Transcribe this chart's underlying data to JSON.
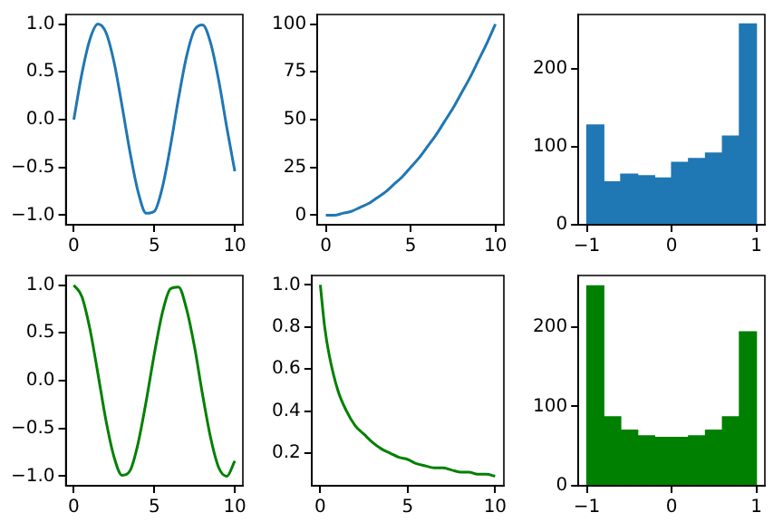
{
  "chart_data": [
    {
      "type": "line",
      "color": "#1f77b4",
      "x": [
        0,
        0.5,
        1,
        1.5,
        2,
        2.5,
        3,
        3.5,
        4,
        4.5,
        5,
        5.5,
        6,
        6.5,
        7,
        7.5,
        8,
        8.5,
        9,
        9.5,
        10
      ],
      "values": [
        0,
        0.48,
        0.84,
        1.0,
        0.91,
        0.6,
        0.14,
        -0.35,
        -0.76,
        -0.98,
        -0.96,
        -0.71,
        -0.28,
        0.22,
        0.66,
        0.94,
        0.99,
        0.8,
        0.41,
        -0.08,
        -0.54
      ],
      "xlim": [
        -0.5,
        10.5
      ],
      "xticks": [
        0,
        5,
        10
      ],
      "ylim": [
        -1.1,
        1.1
      ],
      "yticks": [
        {
          "value": -1,
          "label": "−1.0"
        },
        {
          "value": -0.5,
          "label": "−0.5"
        },
        {
          "value": 0,
          "label": "0.0"
        },
        {
          "value": 0.5,
          "label": "0.5"
        },
        {
          "value": 1,
          "label": "1.0"
        }
      ]
    },
    {
      "type": "line",
      "color": "#1f77b4",
      "x": [
        0,
        0.5,
        1,
        1.5,
        2,
        2.5,
        3,
        3.5,
        4,
        4.5,
        5,
        5.5,
        6,
        6.5,
        7,
        7.5,
        8,
        8.5,
        9,
        9.5,
        10
      ],
      "values": [
        0,
        0,
        1,
        2,
        4,
        6,
        9,
        12,
        16,
        20,
        25,
        30,
        36,
        42,
        49,
        56,
        64,
        72,
        81,
        90,
        100
      ],
      "xlim": [
        -0.5,
        10.5
      ],
      "xticks": [
        0,
        5,
        10
      ],
      "ylim": [
        -5,
        105
      ],
      "yticks": [
        0,
        25,
        50,
        75,
        100
      ]
    },
    {
      "type": "histogram",
      "color": "#1f77b4",
      "bins": [
        -1,
        -0.8,
        -0.6,
        -0.4,
        -0.2,
        0,
        0.2,
        0.4,
        0.6,
        0.8,
        1
      ],
      "values": [
        128,
        55,
        65,
        63,
        60,
        80,
        85,
        92,
        114,
        258
      ],
      "xlim": [
        -1.1,
        1.1
      ],
      "xticks": [
        {
          "value": -1,
          "label": "−1"
        },
        0,
        1
      ],
      "ylim": [
        0,
        270
      ],
      "yticks": [
        0,
        100,
        200
      ]
    },
    {
      "type": "line",
      "color": "#008000",
      "x": [
        0,
        0.5,
        1,
        1.5,
        2,
        2.5,
        3,
        3.5,
        4,
        4.5,
        5,
        5.5,
        6,
        6.5,
        7,
        7.5,
        8,
        8.5,
        9,
        9.5,
        10
      ],
      "values": [
        1,
        0.88,
        0.54,
        0.07,
        -0.42,
        -0.8,
        -0.99,
        -0.94,
        -0.65,
        -0.21,
        0.28,
        0.71,
        0.96,
        0.98,
        0.75,
        0.35,
        -0.15,
        -0.6,
        -0.91,
        -1.0,
        -0.84
      ],
      "xlim": [
        -0.5,
        10.5
      ],
      "xticks": [
        0,
        5,
        10
      ],
      "ylim": [
        -1.1,
        1.1
      ],
      "yticks": [
        {
          "value": -1,
          "label": "−1.0"
        },
        {
          "value": -0.5,
          "label": "−0.5"
        },
        {
          "value": 0,
          "label": "0.0"
        },
        {
          "value": 0.5,
          "label": "0.5"
        },
        {
          "value": 1,
          "label": "1.0"
        }
      ]
    },
    {
      "type": "line",
      "color": "#008000",
      "x": [
        0,
        0.25,
        0.5,
        1,
        1.5,
        2,
        2.5,
        3,
        3.5,
        4,
        4.5,
        5,
        5.5,
        6,
        6.5,
        7,
        7.5,
        8,
        8.5,
        9,
        9.5,
        10
      ],
      "values": [
        1,
        0.8,
        0.67,
        0.5,
        0.4,
        0.33,
        0.29,
        0.25,
        0.22,
        0.2,
        0.18,
        0.17,
        0.15,
        0.14,
        0.13,
        0.13,
        0.12,
        0.11,
        0.11,
        0.1,
        0.1,
        0.09
      ],
      "xlim": [
        -0.5,
        10.5
      ],
      "xticks": [
        0,
        5,
        10
      ],
      "ylim": [
        0.045,
        1.045
      ],
      "yticks": [
        0.2,
        0.4,
        0.6,
        0.8,
        {
          "value": 1,
          "label": "1.0"
        }
      ]
    },
    {
      "type": "histogram",
      "color": "#008000",
      "bins": [
        -1,
        -0.8,
        -0.6,
        -0.4,
        -0.2,
        0,
        0.2,
        0.4,
        0.6,
        0.8,
        1
      ],
      "values": [
        252,
        87,
        70,
        63,
        61,
        61,
        63,
        70,
        87,
        194
      ],
      "xlim": [
        -1.1,
        1.1
      ],
      "xticks": [
        {
          "value": -1,
          "label": "−1"
        },
        0,
        1
      ],
      "ylim": [
        0,
        265
      ],
      "yticks": [
        0,
        100,
        200
      ]
    }
  ]
}
